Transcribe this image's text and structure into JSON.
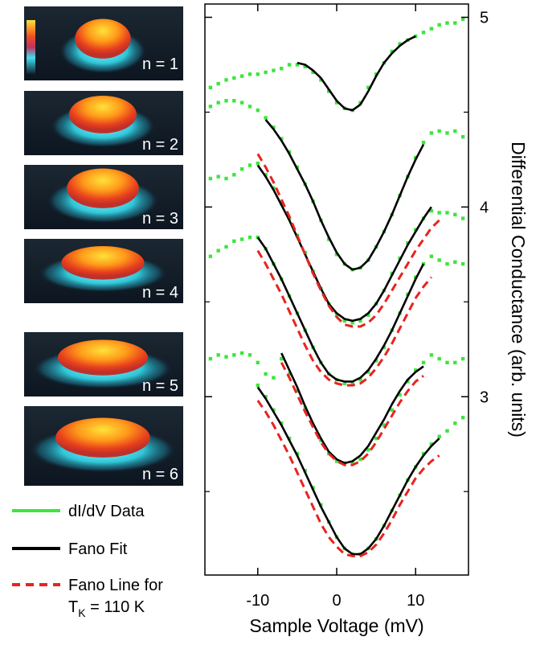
{
  "chart_data": {
    "type": "offset-spectra",
    "x_label": "Sample Voltage (mV)",
    "y_label": "Differential Conductance (arb. units)",
    "xlim": [
      -16.7,
      16.7
    ],
    "xticks": [
      -10,
      0,
      10
    ],
    "ylim": [
      2.06,
      5.07
    ],
    "yticks": [
      3,
      4,
      5
    ],
    "yminor_ticks": [
      2.5,
      3.5,
      4.5
    ],
    "groups": [
      {
        "name": "dI/dV Data",
        "color": "#3ce63c",
        "style": "points",
        "series": [
          {
            "x": [
              -16,
              -15,
              -14,
              -13,
              -12,
              -11,
              -10,
              -9,
              -8,
              -7,
              -6,
              -5,
              -4,
              -3,
              -2,
              -1,
              0,
              1,
              2,
              3,
              4,
              5,
              6,
              7,
              8,
              9,
              10,
              11,
              12,
              13,
              14,
              15,
              16
            ],
            "values": [
              4.63,
              4.65,
              4.67,
              4.68,
              4.69,
              4.7,
              4.7,
              4.71,
              4.72,
              4.73,
              4.75,
              4.75,
              4.74,
              4.71,
              4.67,
              4.61,
              4.55,
              4.52,
              4.51,
              4.55,
              4.63,
              4.7,
              4.76,
              4.82,
              4.86,
              4.88,
              4.9,
              4.92,
              4.94,
              4.96,
              4.97,
              4.97,
              4.99
            ]
          },
          {
            "x": [
              -16,
              -15,
              -14,
              -13,
              -12,
              -11,
              -10,
              -9,
              -8,
              -7,
              -6,
              -5,
              -4,
              -3,
              -2,
              -1,
              0,
              1,
              2,
              3,
              4,
              5,
              6,
              7,
              8,
              9,
              10,
              11,
              12,
              13,
              14,
              15,
              16
            ],
            "values": [
              4.53,
              4.55,
              4.56,
              4.56,
              4.55,
              4.53,
              4.51,
              4.47,
              4.42,
              4.36,
              4.29,
              4.21,
              4.12,
              4.03,
              3.93,
              3.83,
              3.75,
              3.7,
              3.67,
              3.68,
              3.72,
              3.79,
              3.87,
              3.96,
              4.06,
              4.16,
              4.26,
              4.34,
              4.39,
              4.4,
              4.39,
              4.4,
              4.37
            ]
          },
          {
            "x": [
              -16,
              -15,
              -14,
              -13,
              -12,
              -11,
              -10,
              -9,
              -8,
              -7,
              -6,
              -5,
              -4,
              -3,
              -2,
              -1,
              0,
              1,
              2,
              3,
              4,
              5,
              6,
              7,
              8,
              9,
              10,
              11,
              12,
              13,
              14,
              15,
              16
            ],
            "values": [
              4.15,
              4.16,
              4.15,
              4.17,
              4.2,
              4.22,
              4.23,
              4.17,
              4.1,
              4.02,
              3.94,
              3.85,
              3.76,
              3.66,
              3.57,
              3.49,
              3.43,
              3.4,
              3.39,
              3.4,
              3.43,
              3.49,
              3.56,
              3.65,
              3.73,
              3.81,
              3.88,
              3.94,
              3.98,
              3.97,
              3.97,
              3.96,
              3.94
            ]
          },
          {
            "x": [
              -16,
              -15,
              -14,
              -13,
              -12,
              -11,
              -10,
              -9,
              -8,
              -7,
              -6,
              -5,
              -4,
              -3,
              -2,
              -1,
              0,
              1,
              2,
              3,
              4,
              5,
              6,
              7,
              8,
              9,
              10,
              11,
              12,
              13,
              14,
              15,
              16
            ],
            "values": [
              3.74,
              3.77,
              3.79,
              3.82,
              3.83,
              3.84,
              3.84,
              3.78,
              3.7,
              3.62,
              3.53,
              3.44,
              3.35,
              3.26,
              3.18,
              3.12,
              3.09,
              3.07,
              3.07,
              3.09,
              3.13,
              3.19,
              3.26,
              3.35,
              3.44,
              3.54,
              3.63,
              3.7,
              3.74,
              3.72,
              3.7,
              3.71,
              3.7
            ]
          },
          {
            "x": [
              -16,
              -15,
              -14,
              -13,
              -12,
              -11,
              -10,
              -9,
              -8,
              -7,
              -6,
              -5,
              -4,
              -3,
              -2,
              -1,
              0,
              1,
              2,
              3,
              4,
              5,
              6,
              7,
              8,
              9,
              10,
              11,
              12,
              13,
              14,
              15,
              16
            ],
            "values": [
              3.2,
              3.22,
              3.21,
              3.22,
              3.23,
              3.22,
              3.18,
              3.12,
              3.1,
              3.2,
              3.12,
              3.03,
              2.94,
              2.85,
              2.77,
              2.7,
              2.66,
              2.65,
              2.65,
              2.67,
              2.72,
              2.78,
              2.85,
              2.93,
              3.01,
              3.08,
              3.14,
              3.18,
              3.22,
              3.2,
              3.18,
              3.18,
              3.2
            ]
          },
          {
            "x": [
              -10,
              -9,
              -8,
              -7,
              -6,
              -5,
              -4,
              -3,
              -2,
              -1,
              0,
              1,
              2,
              3,
              4,
              5,
              6,
              7,
              8,
              9,
              10,
              11,
              12,
              13,
              14,
              15,
              16
            ],
            "values": [
              3.06,
              3.0,
              2.93,
              2.86,
              2.78,
              2.7,
              2.61,
              2.52,
              2.43,
              2.34,
              2.26,
              2.2,
              2.17,
              2.17,
              2.2,
              2.25,
              2.32,
              2.4,
              2.48,
              2.56,
              2.63,
              2.7,
              2.75,
              2.79,
              2.82,
              2.86,
              2.89
            ]
          }
        ]
      },
      {
        "name": "Fano Fit",
        "color": "#000000",
        "style": "solid",
        "series": [
          {
            "x": [
              -5,
              -4,
              -3,
              -2,
              -1,
              0,
              1,
              2,
              3,
              4,
              5,
              6,
              7,
              8,
              9,
              10
            ],
            "values": [
              4.76,
              4.75,
              4.72,
              4.68,
              4.62,
              4.56,
              4.52,
              4.51,
              4.54,
              4.61,
              4.69,
              4.76,
              4.81,
              4.85,
              4.88,
              4.9
            ]
          },
          {
            "x": [
              -9,
              -8,
              -7,
              -6,
              -5,
              -4,
              -3,
              -2,
              -1,
              0,
              1,
              2,
              3,
              4,
              5,
              6,
              7,
              8,
              9,
              10,
              11
            ],
            "values": [
              4.46,
              4.41,
              4.35,
              4.28,
              4.2,
              4.12,
              4.03,
              3.93,
              3.84,
              3.76,
              3.7,
              3.67,
              3.68,
              3.72,
              3.79,
              3.87,
              3.96,
              4.06,
              4.16,
              4.25,
              4.33
            ]
          },
          {
            "x": [
              -10,
              -9,
              -8,
              -7,
              -6,
              -5,
              -4,
              -3,
              -2,
              -1,
              0,
              1,
              2,
              3,
              4,
              5,
              6,
              7,
              8,
              9,
              10,
              11,
              12
            ],
            "values": [
              4.22,
              4.16,
              4.09,
              4.01,
              3.93,
              3.84,
              3.75,
              3.66,
              3.57,
              3.49,
              3.44,
              3.41,
              3.4,
              3.41,
              3.44,
              3.49,
              3.56,
              3.64,
              3.72,
              3.8,
              3.87,
              3.94,
              4.0
            ]
          },
          {
            "x": [
              -10,
              -9,
              -8,
              -7,
              -6,
              -5,
              -4,
              -3,
              -2,
              -1,
              0,
              1,
              2,
              3,
              4,
              5,
              6,
              7,
              8,
              9,
              10,
              11
            ],
            "values": [
              3.84,
              3.78,
              3.7,
              3.62,
              3.53,
              3.44,
              3.35,
              3.26,
              3.18,
              3.12,
              3.09,
              3.08,
              3.08,
              3.1,
              3.14,
              3.2,
              3.27,
              3.35,
              3.44,
              3.53,
              3.62,
              3.7
            ]
          },
          {
            "x": [
              -7,
              -6,
              -5,
              -4,
              -3,
              -2,
              -1,
              0,
              1,
              2,
              3,
              4,
              5,
              6,
              7,
              8,
              9,
              10,
              11
            ],
            "values": [
              3.23,
              3.14,
              3.05,
              2.95,
              2.86,
              2.78,
              2.71,
              2.67,
              2.65,
              2.66,
              2.69,
              2.74,
              2.81,
              2.88,
              2.96,
              3.03,
              3.09,
              3.13,
              3.16
            ]
          },
          {
            "x": [
              -10,
              -9,
              -8,
              -7,
              -6,
              -5,
              -4,
              -3,
              -2,
              -1,
              0,
              1,
              2,
              3,
              4,
              5,
              6,
              7,
              8,
              9,
              10,
              11,
              12,
              13
            ],
            "values": [
              3.05,
              2.99,
              2.92,
              2.85,
              2.77,
              2.69,
              2.6,
              2.51,
              2.42,
              2.34,
              2.26,
              2.2,
              2.17,
              2.17,
              2.2,
              2.25,
              2.32,
              2.4,
              2.48,
              2.56,
              2.63,
              2.69,
              2.74,
              2.78
            ]
          }
        ]
      },
      {
        "name": "Fano Line for",
        "name_line2": {
          "base": "T",
          "sub": "K",
          "rest": " = 110 K"
        },
        "color": "#e8231f",
        "style": "dashed",
        "series": [
          {
            "x": [
              -10,
              -9,
              -8,
              -7,
              -6,
              -5,
              -4,
              -3,
              -2,
              -1,
              0,
              1,
              2,
              3,
              4,
              5,
              6,
              7,
              8,
              9,
              10,
              11,
              12,
              13
            ],
            "values": [
              4.28,
              4.21,
              4.13,
              4.04,
              3.95,
              3.85,
              3.75,
              3.65,
              3.56,
              3.48,
              3.42,
              3.38,
              3.37,
              3.37,
              3.39,
              3.43,
              3.49,
              3.56,
              3.63,
              3.7,
              3.77,
              3.83,
              3.89,
              3.93
            ]
          },
          {
            "x": [
              -10,
              -9,
              -8,
              -7,
              -6,
              -5,
              -4,
              -3,
              -2,
              -1,
              0,
              1,
              2,
              3,
              4,
              5,
              6,
              7,
              8,
              9,
              10,
              11,
              12
            ],
            "values": [
              3.77,
              3.7,
              3.62,
              3.54,
              3.45,
              3.36,
              3.27,
              3.19,
              3.13,
              3.09,
              3.07,
              3.06,
              3.06,
              3.07,
              3.1,
              3.15,
              3.21,
              3.28,
              3.36,
              3.44,
              3.52,
              3.58,
              3.63
            ]
          },
          {
            "x": [
              -7,
              -6,
              -5,
              -4,
              -3,
              -2,
              -1,
              0,
              1,
              2,
              3,
              4,
              5,
              6,
              7,
              8,
              9,
              10,
              11
            ],
            "values": [
              3.18,
              3.1,
              3.01,
              2.92,
              2.84,
              2.76,
              2.7,
              2.66,
              2.64,
              2.64,
              2.66,
              2.7,
              2.76,
              2.83,
              2.9,
              2.97,
              3.03,
              3.08,
              3.11
            ]
          },
          {
            "x": [
              -10,
              -9,
              -8,
              -7,
              -6,
              -5,
              -4,
              -3,
              -2,
              -1,
              0,
              1,
              2,
              3,
              4,
              5,
              6,
              7,
              8,
              9,
              10,
              11,
              12,
              13
            ],
            "values": [
              2.98,
              2.92,
              2.85,
              2.77,
              2.69,
              2.6,
              2.51,
              2.42,
              2.33,
              2.26,
              2.21,
              2.17,
              2.16,
              2.16,
              2.18,
              2.22,
              2.28,
              2.35,
              2.43,
              2.5,
              2.57,
              2.62,
              2.66,
              2.69
            ]
          }
        ]
      }
    ]
  },
  "images": [
    {
      "label": "n = 1"
    },
    {
      "label": "n = 2"
    },
    {
      "label": "n = 3"
    },
    {
      "label": "n = 4"
    },
    {
      "label": "n = 5"
    },
    {
      "label": "n = 6"
    }
  ]
}
